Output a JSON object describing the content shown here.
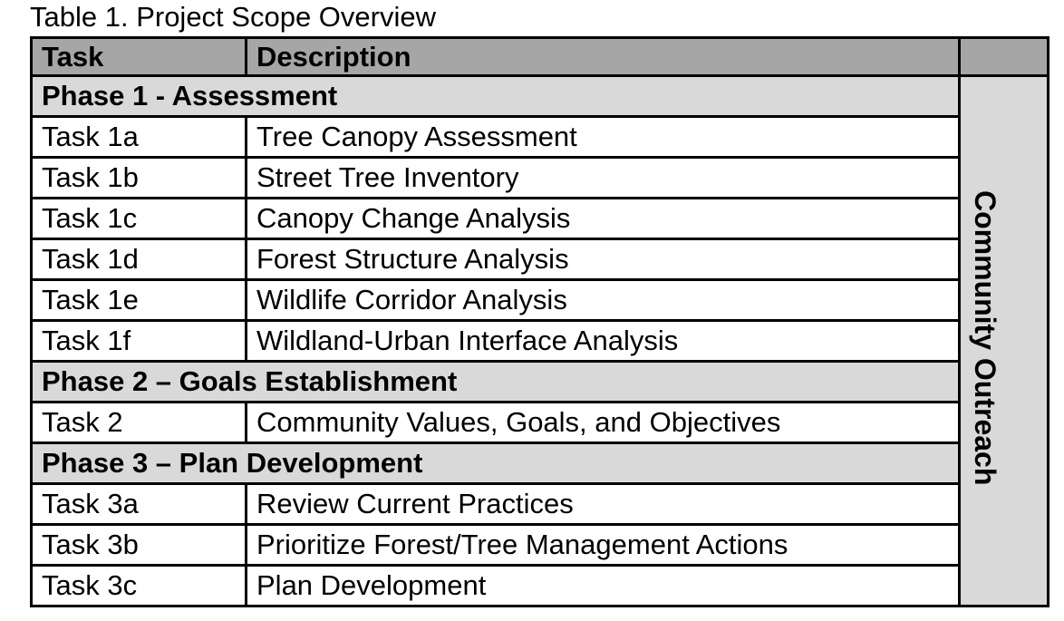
{
  "title": "Table 1. Project Scope Overview",
  "table": {
    "headers": {
      "task": "Task",
      "description": "Description"
    },
    "side_label": "Community Outreach",
    "rows": [
      {
        "type": "phase",
        "label": "Phase 1 - Assessment"
      },
      {
        "type": "task",
        "task": "Task 1a",
        "description": "Tree Canopy Assessment"
      },
      {
        "type": "task",
        "task": "Task 1b",
        "description": "Street Tree Inventory"
      },
      {
        "type": "task",
        "task": "Task 1c",
        "description": "Canopy Change Analysis"
      },
      {
        "type": "task",
        "task": "Task 1d",
        "description": "Forest Structure Analysis"
      },
      {
        "type": "task",
        "task": "Task 1e",
        "description": "Wildlife Corridor Analysis"
      },
      {
        "type": "task",
        "task": "Task 1f",
        "description": "Wildland-Urban Interface Analysis"
      },
      {
        "type": "phase",
        "label": "Phase 2 – Goals Establishment"
      },
      {
        "type": "task",
        "task": "Task 2",
        "description": "Community Values, Goals, and Objectives"
      },
      {
        "type": "phase",
        "label": "Phase 3 – Plan Development"
      },
      {
        "type": "task",
        "task": "Task 3a",
        "description": "Review Current Practices"
      },
      {
        "type": "task",
        "task": "Task 3b",
        "description": "Prioritize Forest/Tree Management Actions"
      },
      {
        "type": "task",
        "task": "Task 3c",
        "description": "Plan Development"
      }
    ]
  },
  "colors": {
    "header_bg": "#a6a6a6",
    "phase_bg": "#d9d9d9",
    "side_bg": "#d9d9d9",
    "border": "#000000",
    "text": "#000000",
    "page_bg": "#ffffff"
  }
}
